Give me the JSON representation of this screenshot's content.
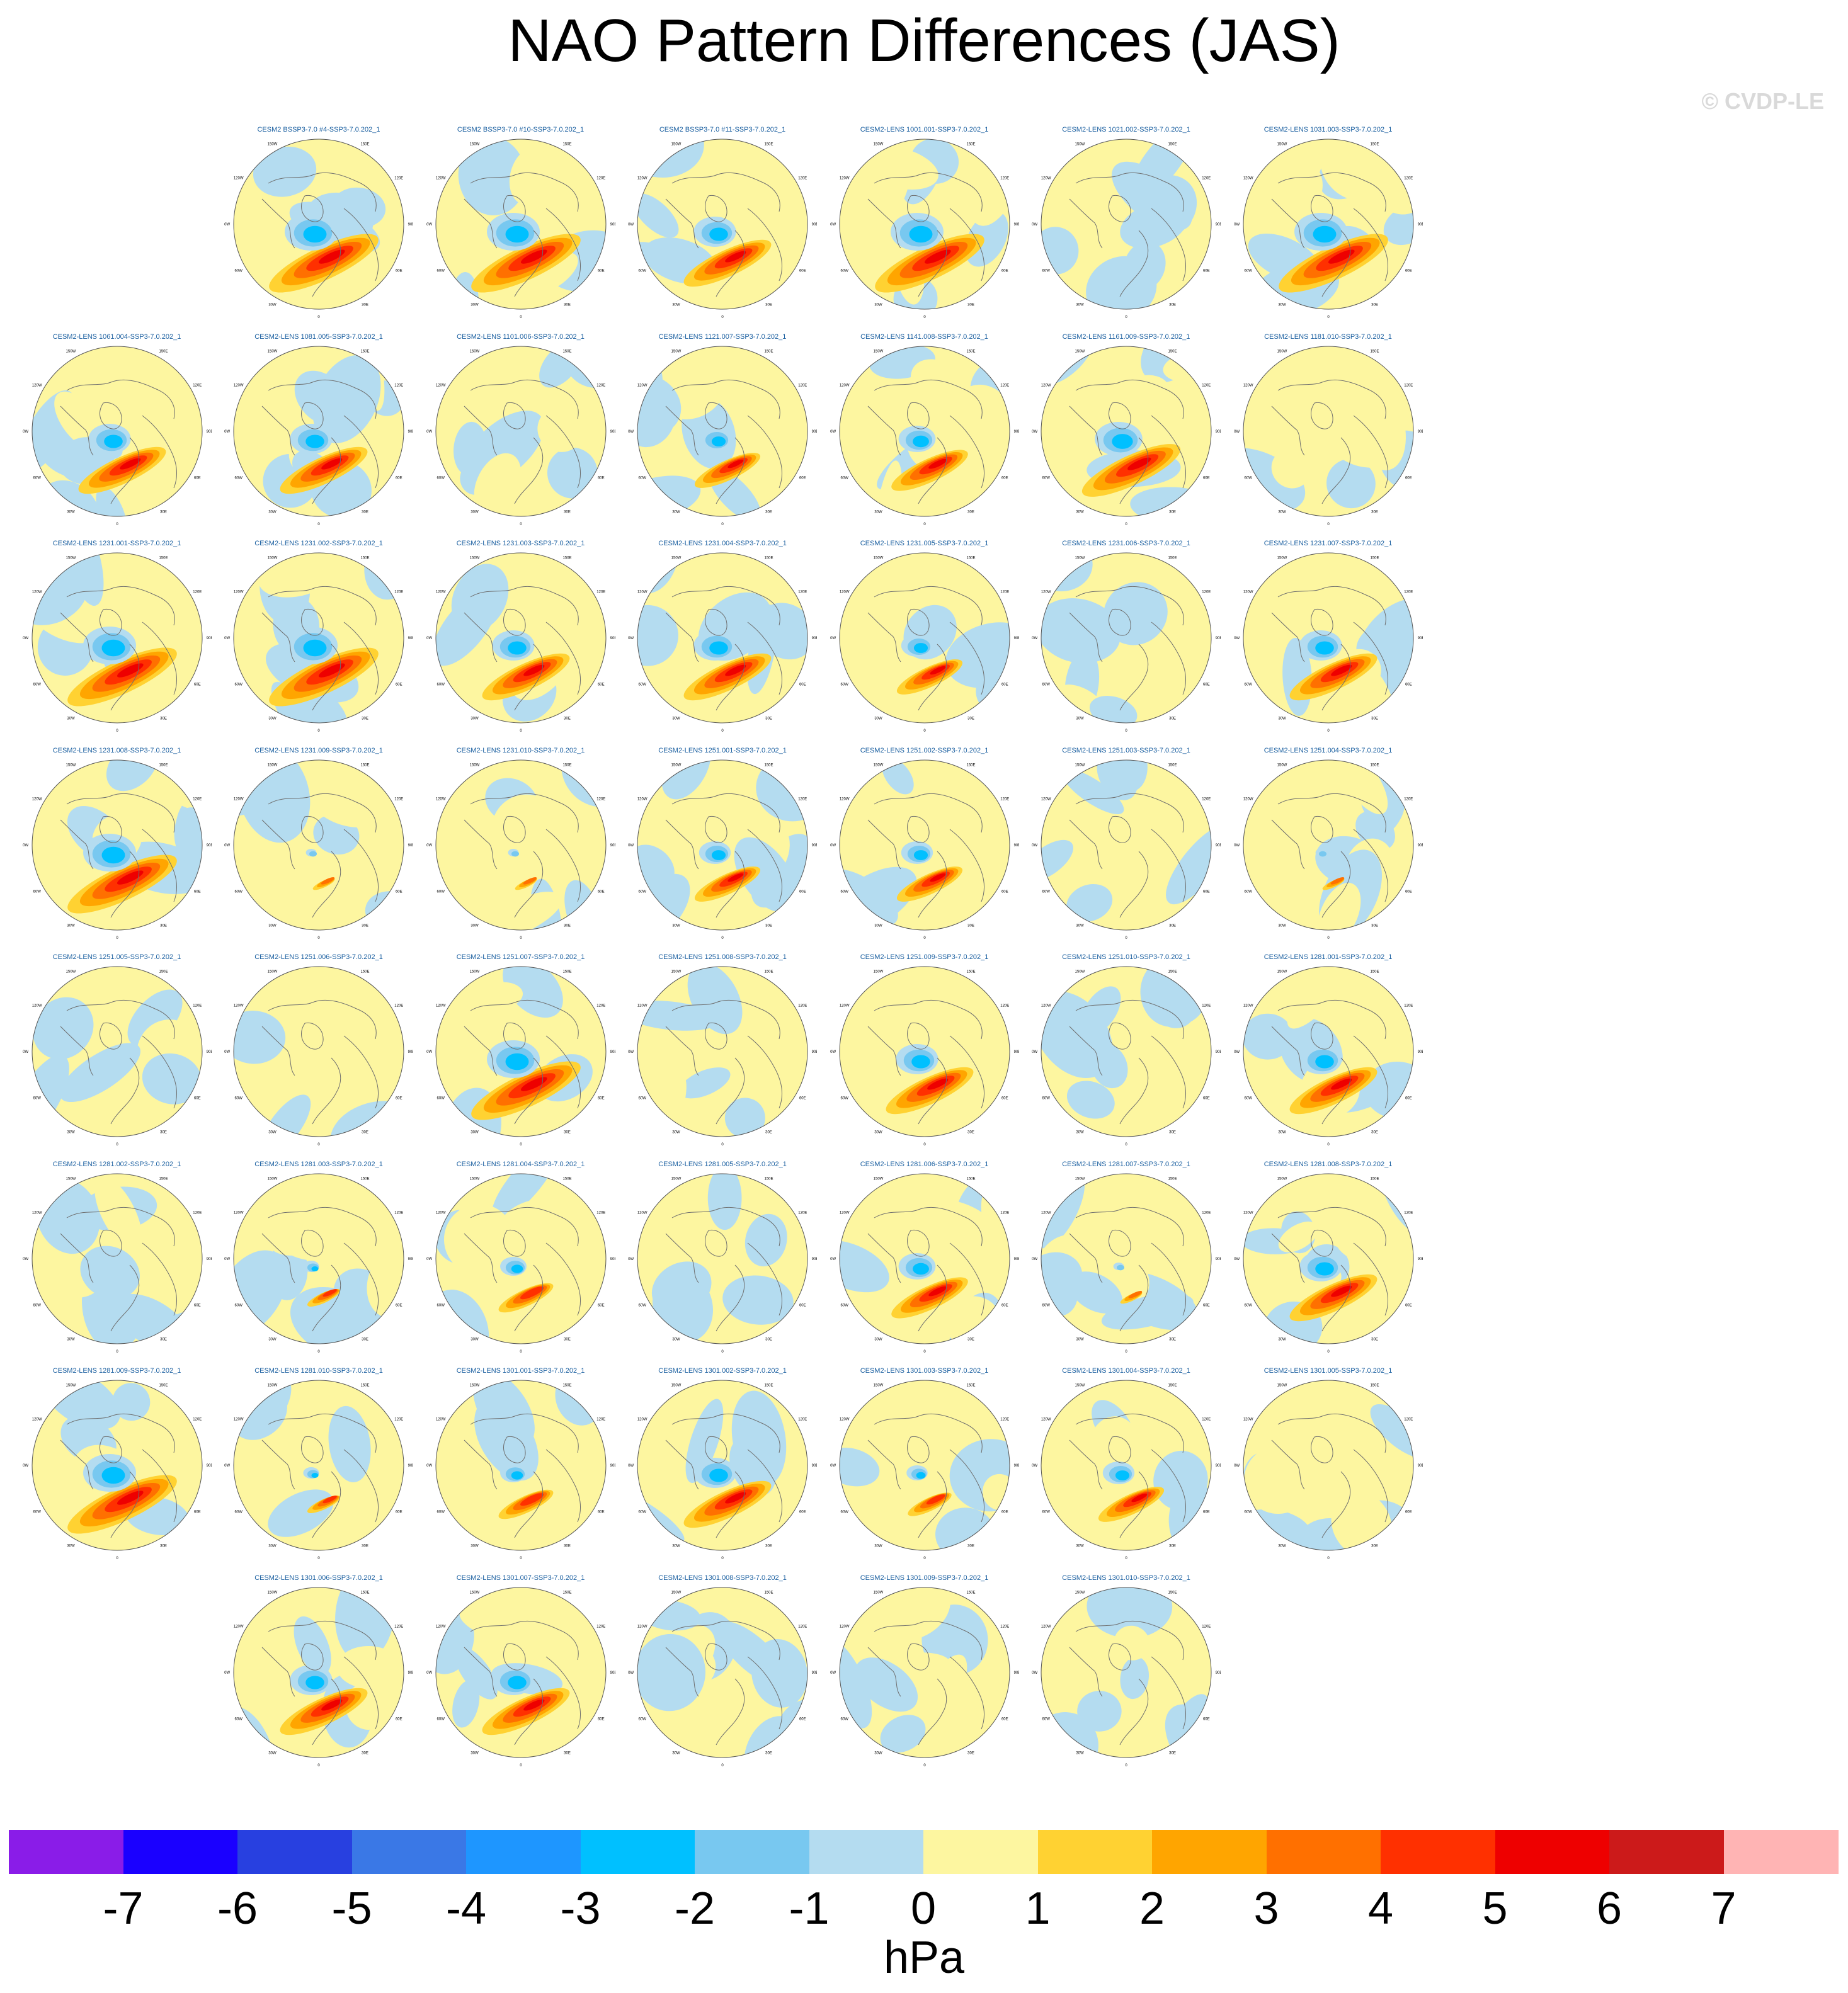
{
  "title": "NAO Pattern Differences (JAS)",
  "watermark": "© CVDP-LE",
  "units": "hPa",
  "map": {
    "longitude_labels": [
      "180",
      "150E",
      "120E",
      "90E",
      "60E",
      "30E",
      "0",
      "30W",
      "60W",
      "90W",
      "120W",
      "150W"
    ],
    "colors": {
      "ocean_neutral_neg": "#b4dcf0",
      "neutral_pos": "#fdf6a0",
      "coast": "#6e6e6e",
      "outline": "#555555"
    }
  },
  "colorbar": {
    "levels": [
      -7,
      -6,
      -5,
      -4,
      -3,
      -2,
      -1,
      0,
      1,
      2,
      3,
      4,
      5,
      6,
      7
    ],
    "tick_labels": [
      "-7",
      "-6",
      "-5",
      "-4",
      "-3",
      "-2",
      "-1",
      "0",
      "1",
      "2",
      "3",
      "4",
      "5",
      "6",
      "7"
    ],
    "colors": [
      "#8a1ce8",
      "#1a00ff",
      "#2840e0",
      "#3a78e6",
      "#1e96ff",
      "#00c0ff",
      "#78c8f0",
      "#b4dcf0",
      "#fdf6a0",
      "#ffd232",
      "#ffa500",
      "#ff7000",
      "#ff3000",
      "#ee0000",
      "#cc1a1a",
      "#ffb4b4"
    ]
  },
  "panels": [
    {
      "row": 0,
      "col": 1,
      "label": "CESM2 BSSP3-7.0 #4-SSP3-7.0.202_1",
      "amp": 1.0,
      "variant": 1
    },
    {
      "row": 0,
      "col": 2,
      "label": "CESM2 BSSP3-7.0 #10-SSP3-7.0.202_1",
      "amp": 1.0,
      "variant": 2
    },
    {
      "row": 0,
      "col": 3,
      "label": "CESM2 BSSP3-7.0 #11-SSP3-7.0.202_1",
      "amp": 0.8,
      "variant": 3
    },
    {
      "row": 0,
      "col": 4,
      "label": "CESM2-LENS 1001.001-SSP3-7.0.202_1",
      "amp": 1.0,
      "variant": 4
    },
    {
      "row": 0,
      "col": 5,
      "label": "CESM2-LENS 1021.002-SSP3-7.0.202_1",
      "amp": 0.1,
      "variant": 5
    },
    {
      "row": 0,
      "col": 6,
      "label": "CESM2-LENS 1031.003-SSP3-7.0.202_1",
      "amp": 1.0,
      "variant": 6
    },
    {
      "row": 1,
      "col": 0,
      "label": "CESM2-LENS 1061.004-SSP3-7.0.202_1",
      "amp": 0.8,
      "variant": 7
    },
    {
      "row": 1,
      "col": 1,
      "label": "CESM2-LENS 1081.005-SSP3-7.0.202_1",
      "amp": 0.8,
      "variant": 8
    },
    {
      "row": 1,
      "col": 2,
      "label": "CESM2-LENS 1101.006-SSP3-7.0.202_1",
      "amp": 0.1,
      "variant": 9
    },
    {
      "row": 1,
      "col": 3,
      "label": "CESM2-LENS 1121.007-SSP3-7.0.202_1",
      "amp": 0.6,
      "variant": 10
    },
    {
      "row": 1,
      "col": 4,
      "label": "CESM2-LENS 1141.008-SSP3-7.0.202_1",
      "amp": 0.7,
      "variant": 11
    },
    {
      "row": 1,
      "col": 5,
      "label": "CESM2-LENS 1161.009-SSP3-7.0.202_1",
      "amp": 0.9,
      "variant": 12
    },
    {
      "row": 1,
      "col": 6,
      "label": "CESM2-LENS 1181.010-SSP3-7.0.202_1",
      "amp": 0.1,
      "variant": 13
    },
    {
      "row": 2,
      "col": 0,
      "label": "CESM2-LENS 1231.001-SSP3-7.0.202_1",
      "amp": 1.0,
      "variant": 14
    },
    {
      "row": 2,
      "col": 1,
      "label": "CESM2-LENS 1231.002-SSP3-7.0.202_1",
      "amp": 1.0,
      "variant": 15
    },
    {
      "row": 2,
      "col": 2,
      "label": "CESM2-LENS 1231.003-SSP3-7.0.202_1",
      "amp": 0.8,
      "variant": 16
    },
    {
      "row": 2,
      "col": 3,
      "label": "CESM2-LENS 1231.004-SSP3-7.0.202_1",
      "amp": 0.8,
      "variant": 17
    },
    {
      "row": 2,
      "col": 4,
      "label": "CESM2-LENS 1231.005-SSP3-7.0.202_1",
      "amp": 0.6,
      "variant": 18
    },
    {
      "row": 2,
      "col": 5,
      "label": "CESM2-LENS 1231.006-SSP3-7.0.202_1",
      "amp": 0.1,
      "variant": 19
    },
    {
      "row": 2,
      "col": 6,
      "label": "CESM2-LENS 1231.007-SSP3-7.0.202_1",
      "amp": 0.8,
      "variant": 20
    },
    {
      "row": 3,
      "col": 0,
      "label": "CESM2-LENS 1231.008-SSP3-7.0.202_1",
      "amp": 1.0,
      "variant": 21
    },
    {
      "row": 3,
      "col": 1,
      "label": "CESM2-LENS 1231.009-SSP3-7.0.202_1",
      "amp": 0.2,
      "variant": 22
    },
    {
      "row": 3,
      "col": 2,
      "label": "CESM2-LENS 1231.010-SSP3-7.0.202_1",
      "amp": 0.2,
      "variant": 23
    },
    {
      "row": 3,
      "col": 3,
      "label": "CESM2-LENS 1251.001-SSP3-7.0.202_1",
      "amp": 0.6,
      "variant": 24
    },
    {
      "row": 3,
      "col": 4,
      "label": "CESM2-LENS 1251.002-SSP3-7.0.202_1",
      "amp": 0.6,
      "variant": 25
    },
    {
      "row": 3,
      "col": 5,
      "label": "CESM2-LENS 1251.003-SSP3-7.0.202_1",
      "amp": 0.1,
      "variant": 26
    },
    {
      "row": 3,
      "col": 6,
      "label": "CESM2-LENS 1251.004-SSP3-7.0.202_1",
      "amp": 0.2,
      "variant": 27
    },
    {
      "row": 4,
      "col": 0,
      "label": "CESM2-LENS 1251.005-SSP3-7.0.202_1",
      "amp": 0.1,
      "variant": 28
    },
    {
      "row": 4,
      "col": 1,
      "label": "CESM2-LENS 1251.006-SSP3-7.0.202_1",
      "amp": 0.1,
      "variant": 29
    },
    {
      "row": 4,
      "col": 2,
      "label": "CESM2-LENS 1251.007-SSP3-7.0.202_1",
      "amp": 1.0,
      "variant": 30
    },
    {
      "row": 4,
      "col": 3,
      "label": "CESM2-LENS 1251.008-SSP3-7.0.202_1",
      "amp": 0.1,
      "variant": 31
    },
    {
      "row": 4,
      "col": 4,
      "label": "CESM2-LENS 1251.009-SSP3-7.0.202_1",
      "amp": 0.8,
      "variant": 32
    },
    {
      "row": 4,
      "col": 5,
      "label": "CESM2-LENS 1251.010-SSP3-7.0.202_1",
      "amp": 0.1,
      "variant": 33
    },
    {
      "row": 4,
      "col": 6,
      "label": "CESM2-LENS 1281.001-SSP3-7.0.202_1",
      "amp": 0.8,
      "variant": 34
    },
    {
      "row": 5,
      "col": 0,
      "label": "CESM2-LENS 1281.002-SSP3-7.0.202_1",
      "amp": 0.1,
      "variant": 35
    },
    {
      "row": 5,
      "col": 1,
      "label": "CESM2-LENS 1281.003-SSP3-7.0.202_1",
      "amp": 0.3,
      "variant": 36
    },
    {
      "row": 5,
      "col": 2,
      "label": "CESM2-LENS 1281.004-SSP3-7.0.202_1",
      "amp": 0.5,
      "variant": 37
    },
    {
      "row": 5,
      "col": 3,
      "label": "CESM2-LENS 1281.005-SSP3-7.0.202_1",
      "amp": 0.1,
      "variant": 38
    },
    {
      "row": 5,
      "col": 4,
      "label": "CESM2-LENS 1281.006-SSP3-7.0.202_1",
      "amp": 0.7,
      "variant": 39
    },
    {
      "row": 5,
      "col": 5,
      "label": "CESM2-LENS 1281.007-SSP3-7.0.202_1",
      "amp": 0.2,
      "variant": 40
    },
    {
      "row": 5,
      "col": 6,
      "label": "CESM2-LENS 1281.008-SSP3-7.0.202_1",
      "amp": 0.8,
      "variant": 41
    },
    {
      "row": 6,
      "col": 0,
      "label": "CESM2-LENS 1281.009-SSP3-7.0.202_1",
      "amp": 1.0,
      "variant": 42
    },
    {
      "row": 6,
      "col": 1,
      "label": "CESM2-LENS 1281.010-SSP3-7.0.202_1",
      "amp": 0.3,
      "variant": 43
    },
    {
      "row": 6,
      "col": 2,
      "label": "CESM2-LENS 1301.001-SSP3-7.0.202_1",
      "amp": 0.5,
      "variant": 44
    },
    {
      "row": 6,
      "col": 3,
      "label": "CESM2-LENS 1301.002-SSP3-7.0.202_1",
      "amp": 0.8,
      "variant": 45
    },
    {
      "row": 6,
      "col": 4,
      "label": "CESM2-LENS 1301.003-SSP3-7.0.202_1",
      "amp": 0.4,
      "variant": 46
    },
    {
      "row": 6,
      "col": 5,
      "label": "CESM2-LENS 1301.004-SSP3-7.0.202_1",
      "amp": 0.6,
      "variant": 47
    },
    {
      "row": 6,
      "col": 6,
      "label": "CESM2-LENS 1301.005-SSP3-7.0.202_1",
      "amp": 0.1,
      "variant": 48
    },
    {
      "row": 7,
      "col": 1,
      "label": "CESM2-LENS 1301.006-SSP3-7.0.202_1",
      "amp": 0.8,
      "variant": 49
    },
    {
      "row": 7,
      "col": 2,
      "label": "CESM2-LENS 1301.007-SSP3-7.0.202_1",
      "amp": 0.8,
      "variant": 50
    },
    {
      "row": 7,
      "col": 3,
      "label": "CESM2-LENS 1301.008-SSP3-7.0.202_1",
      "amp": 0.1,
      "variant": 51
    },
    {
      "row": 7,
      "col": 4,
      "label": "CESM2-LENS 1301.009-SSP3-7.0.202_1",
      "amp": 0.1,
      "variant": 52
    },
    {
      "row": 7,
      "col": 5,
      "label": "CESM2-LENS 1301.010-SSP3-7.0.202_1",
      "amp": 0.1,
      "variant": 53
    }
  ]
}
